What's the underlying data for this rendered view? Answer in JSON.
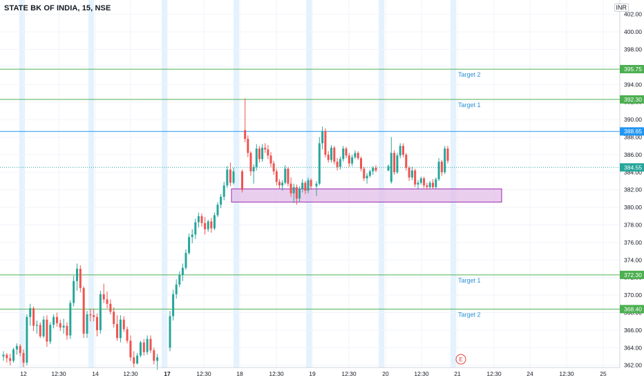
{
  "header": {
    "title": "STATE BK OF INDIA, 15, NSE",
    "currency": "INR"
  },
  "colors": {
    "up": "#26a69a",
    "down": "#ef5350",
    "target_line": "#4caf50",
    "current_line": "#2196f3",
    "zone_fill": "#e1bee7",
    "zone_border": "#9c27b0",
    "session_band": "#e3f2fd",
    "target_label": "#2a8fd6",
    "earnings_marker": "#e53935"
  },
  "chart_data": {
    "type": "candlestick",
    "symbol": "STATE BK OF INDIA",
    "interval": "15",
    "exchange": "NSE",
    "ylim": [
      361.5,
      403.0
    ],
    "y_ticks": [
      362,
      364,
      366,
      368,
      370,
      372,
      374,
      376,
      378,
      380,
      382,
      384,
      386,
      388,
      390,
      392,
      394,
      396,
      398,
      400,
      402
    ],
    "y_tick_labels": [
      "362.00",
      "364.00",
      "366.00",
      "368.00",
      "370.00",
      "372.00",
      "374.00",
      "376.00",
      "378.00",
      "380.00",
      "382.00",
      "384.00",
      "386.00",
      "388.00",
      "390.00",
      "392.00",
      "394.00",
      "396.00",
      "398.00",
      "400.00",
      "402.00"
    ],
    "x_ticks": [
      {
        "label": "12",
        "bold": false
      },
      {
        "label": "12:30",
        "bold": false
      },
      {
        "label": "14",
        "bold": false
      },
      {
        "label": "12:30",
        "bold": false
      },
      {
        "label": "17",
        "bold": true
      },
      {
        "label": "12:30",
        "bold": false
      },
      {
        "label": "18",
        "bold": false
      },
      {
        "label": "12:30",
        "bold": false
      },
      {
        "label": "19",
        "bold": false
      },
      {
        "label": "12:30",
        "bold": false
      },
      {
        "label": "20",
        "bold": false
      },
      {
        "label": "12:30",
        "bold": false
      },
      {
        "label": "21",
        "bold": false
      },
      {
        "label": "12:30",
        "bold": false
      },
      {
        "label": "24",
        "bold": false
      },
      {
        "label": "12:30",
        "bold": false
      },
      {
        "label": "25",
        "bold": false
      }
    ],
    "horizontal_lines": [
      {
        "price": 395.75,
        "label": "395.75",
        "kind": "target",
        "text": "Target 2"
      },
      {
        "price": 392.3,
        "label": "392.30",
        "kind": "target",
        "text": "Target 1"
      },
      {
        "price": 388.65,
        "label": "388.65",
        "kind": "current",
        "text": ""
      },
      {
        "price": 372.3,
        "label": "372.30",
        "kind": "target",
        "text": "Target 1"
      },
      {
        "price": 368.4,
        "label": "368.40",
        "kind": "target",
        "text": "Target 2"
      }
    ],
    "last_price": {
      "price": 384.55,
      "label": "384.55"
    },
    "support_zone": {
      "price_low": 380.6,
      "price_high": 382.1
    },
    "earnings_marker": "E",
    "candles": [
      [
        363.0,
        363.6,
        362.5,
        363.2
      ],
      [
        363.2,
        363.4,
        362.3,
        362.8
      ],
      [
        362.8,
        363.3,
        362.0,
        362.5
      ],
      [
        362.5,
        364.0,
        362.3,
        363.8
      ],
      [
        363.8,
        364.5,
        363.2,
        364.2
      ],
      [
        364.2,
        364.4,
        363.0,
        363.4
      ],
      [
        363.4,
        363.8,
        361.8,
        362.3
      ],
      [
        362.3,
        367.8,
        362.0,
        367.5
      ],
      [
        367.5,
        369.0,
        366.5,
        368.5
      ],
      [
        368.5,
        368.7,
        365.9,
        366.5
      ],
      [
        366.5,
        367.1,
        365.6,
        366.6
      ],
      [
        366.6,
        366.9,
        365.1,
        365.3
      ],
      [
        365.3,
        367.6,
        365.1,
        367.2
      ],
      [
        367.2,
        367.7,
        364.1,
        364.7
      ],
      [
        364.7,
        366.9,
        364.4,
        366.6
      ],
      [
        366.6,
        367.8,
        366.2,
        367.5
      ],
      [
        367.5,
        368.0,
        366.4,
        366.8
      ],
      [
        366.8,
        367.2,
        365.9,
        366.3
      ],
      [
        366.3,
        367.3,
        365.6,
        366.5
      ],
      [
        366.5,
        366.9,
        364.9,
        365.4
      ],
      [
        365.4,
        369.4,
        365.0,
        369.1
      ],
      [
        369.1,
        372.2,
        368.7,
        371.6
      ],
      [
        371.6,
        373.6,
        370.5,
        373.0
      ],
      [
        373.0,
        373.4,
        370.3,
        370.8
      ],
      [
        370.8,
        371.0,
        365.1,
        365.6
      ],
      [
        365.6,
        368.2,
        365.1,
        367.8
      ],
      [
        367.8,
        368.4,
        367.0,
        367.7
      ],
      [
        367.7,
        368.4,
        367.0,
        367.5
      ],
      [
        367.5,
        367.9,
        365.3,
        366.0
      ],
      [
        366.0,
        370.5,
        365.6,
        370.1
      ],
      [
        370.1,
        371.3,
        369.1,
        369.5
      ],
      [
        369.5,
        370.4,
        368.5,
        369.0
      ],
      [
        369.0,
        369.5,
        367.8,
        368.1
      ],
      [
        368.1,
        368.6,
        366.3,
        366.7
      ],
      [
        366.7,
        367.7,
        364.8,
        365.1
      ],
      [
        365.1,
        367.7,
        364.6,
        367.2
      ],
      [
        367.2,
        367.6,
        365.8,
        366.1
      ],
      [
        366.1,
        366.4,
        364.5,
        364.8
      ],
      [
        364.8,
        365.4,
        362.5,
        362.9
      ],
      [
        362.9,
        363.6,
        361.7,
        362.2
      ],
      [
        362.2,
        363.4,
        362.1,
        363.1
      ],
      [
        363.1,
        364.8,
        362.9,
        364.6
      ],
      [
        364.6,
        365.0,
        363.1,
        363.5
      ],
      [
        363.5,
        365.4,
        363.2,
        365.0
      ],
      [
        365.0,
        365.4,
        363.4,
        363.7
      ],
      [
        363.7,
        364.0,
        362.1,
        362.5
      ],
      [
        362.5,
        363.3,
        361.5,
        362.9
      ],
      [
        364.0,
        368.2,
        363.6,
        367.6
      ],
      [
        367.6,
        370.6,
        367.1,
        370.1
      ],
      [
        370.1,
        371.8,
        369.6,
        371.2
      ],
      [
        371.2,
        372.7,
        370.9,
        372.3
      ],
      [
        372.3,
        373.6,
        371.6,
        373.1
      ],
      [
        373.1,
        375.2,
        372.9,
        374.8
      ],
      [
        374.8,
        377.0,
        374.6,
        376.6
      ],
      [
        376.6,
        377.5,
        375.9,
        376.9
      ],
      [
        376.9,
        378.7,
        376.4,
        378.3
      ],
      [
        378.3,
        379.4,
        377.7,
        379.0
      ],
      [
        379.0,
        379.3,
        377.8,
        378.2
      ],
      [
        378.2,
        378.9,
        376.9,
        377.5
      ],
      [
        377.5,
        378.6,
        377.2,
        378.4
      ],
      [
        378.4,
        378.8,
        377.1,
        377.6
      ],
      [
        377.6,
        379.4,
        377.4,
        379.1
      ],
      [
        379.1,
        380.6,
        378.9,
        380.3
      ],
      [
        380.3,
        381.5,
        379.9,
        381.2
      ],
      [
        381.2,
        382.9,
        380.8,
        382.5
      ],
      [
        382.5,
        384.7,
        382.2,
        384.3
      ],
      [
        384.3,
        385.1,
        382.4,
        382.8
      ],
      [
        382.8,
        384.5,
        382.6,
        384.1
      ],
      [
        384.1,
        384.3,
        381.7,
        382.0
      ],
      [
        388.8,
        392.4,
        387.4,
        387.8
      ],
      [
        387.8,
        388.2,
        385.7,
        386.2
      ],
      [
        386.2,
        386.4,
        383.6,
        384.1
      ],
      [
        384.1,
        384.9,
        382.7,
        384.6
      ],
      [
        384.6,
        387.2,
        384.2,
        386.7
      ],
      [
        386.7,
        387.0,
        385.1,
        385.5
      ],
      [
        385.5,
        387.2,
        385.2,
        386.8
      ],
      [
        386.8,
        387.3,
        386.2,
        386.6
      ],
      [
        386.6,
        387.1,
        385.5,
        385.9
      ],
      [
        385.9,
        386.3,
        384.6,
        385.0
      ],
      [
        385.0,
        385.3,
        383.7,
        384.1
      ],
      [
        384.1,
        384.4,
        382.5,
        382.9
      ],
      [
        382.9,
        383.2,
        382.1,
        382.5
      ],
      [
        382.5,
        383.1,
        381.9,
        382.8
      ],
      [
        382.8,
        384.8,
        382.6,
        384.4
      ],
      [
        384.4,
        384.6,
        382.4,
        382.7
      ],
      [
        382.7,
        383.4,
        381.2,
        381.6
      ],
      [
        381.6,
        382.7,
        380.5,
        382.3
      ],
      [
        382.3,
        382.6,
        380.3,
        381.0
      ],
      [
        381.0,
        382.4,
        380.6,
        382.1
      ],
      [
        382.1,
        383.2,
        381.7,
        382.8
      ],
      [
        382.8,
        383.0,
        381.5,
        381.9
      ],
      [
        381.9,
        383.4,
        381.6,
        383.1
      ],
      [
        383.1,
        383.3,
        382.0,
        382.4
      ],
      [
        382.4,
        383.0,
        381.3,
        382.7
      ],
      [
        382.7,
        388.0,
        382.5,
        387.3
      ],
      [
        387.3,
        389.2,
        386.6,
        388.7
      ],
      [
        388.7,
        389.0,
        385.7,
        386.0
      ],
      [
        386.0,
        386.4,
        385.1,
        385.4
      ],
      [
        385.4,
        387.1,
        385.1,
        386.8
      ],
      [
        386.8,
        387.0,
        384.9,
        385.2
      ],
      [
        385.2,
        385.6,
        384.2,
        384.6
      ],
      [
        384.6,
        385.8,
        384.3,
        385.5
      ],
      [
        385.5,
        387.0,
        385.2,
        386.7
      ],
      [
        386.7,
        386.9,
        385.6,
        385.9
      ],
      [
        385.9,
        386.2,
        384.6,
        385.0
      ],
      [
        385.0,
        386.0,
        384.7,
        385.7
      ],
      [
        385.7,
        386.5,
        385.5,
        386.2
      ],
      [
        386.2,
        386.4,
        385.4,
        385.6
      ],
      [
        385.6,
        385.8,
        384.1,
        384.4
      ],
      [
        384.4,
        384.6,
        383.0,
        383.3
      ],
      [
        383.3,
        383.9,
        382.7,
        383.6
      ],
      [
        383.6,
        384.3,
        383.4,
        384.1
      ],
      [
        384.1,
        384.7,
        383.7,
        384.5
      ],
      [
        384.5,
        384.8,
        384.0,
        384.2
      ],
      [
        384.2,
        384.9,
        384.1,
        384.7
      ],
      [
        382.9,
        388.0,
        382.7,
        386.2
      ],
      [
        386.2,
        386.5,
        383.7,
        384.0
      ],
      [
        384.0,
        386.2,
        383.8,
        385.9
      ],
      [
        385.9,
        387.3,
        385.6,
        387.0
      ],
      [
        387.0,
        387.3,
        385.7,
        386.0
      ],
      [
        386.0,
        386.2,
        384.2,
        384.5
      ],
      [
        384.5,
        384.7,
        383.0,
        383.4
      ],
      [
        383.4,
        384.6,
        383.1,
        384.2
      ],
      [
        384.2,
        384.4,
        382.3,
        382.6
      ],
      [
        382.6,
        383.1,
        382.1,
        382.8
      ],
      [
        382.8,
        383.5,
        382.6,
        383.3
      ],
      [
        383.3,
        383.5,
        382.2,
        382.5
      ],
      [
        382.5,
        382.8,
        382.0,
        382.3
      ],
      [
        382.3,
        383.0,
        382.1,
        382.8
      ],
      [
        382.8,
        383.2,
        382.1,
        382.3
      ],
      [
        382.3,
        383.4,
        382.1,
        383.2
      ],
      [
        383.2,
        385.6,
        383.0,
        385.2
      ],
      [
        385.2,
        385.4,
        383.6,
        384.0
      ],
      [
        384.0,
        387.0,
        383.8,
        386.7
      ],
      [
        386.7,
        387.0,
        385.0,
        385.3
      ],
      [
        385.3,
        385.8,
        384.4,
        384.6
      ]
    ]
  }
}
